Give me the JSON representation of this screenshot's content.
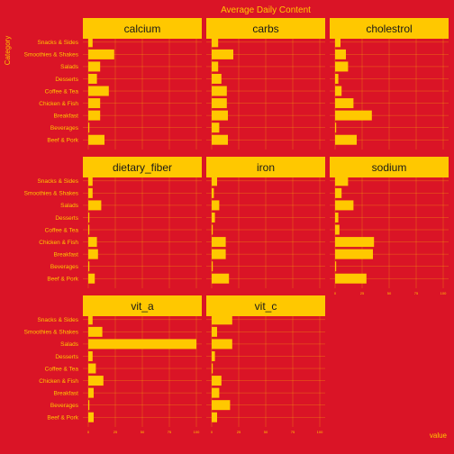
{
  "chart_data": {
    "type": "bar",
    "orientation": "horizontal",
    "title": "Average Daily Content",
    "xlabel": "value",
    "ylabel": "Category",
    "categories": [
      "Beef & Pork",
      "Beverages",
      "Breakfast",
      "Chicken & Fish",
      "Coffee & Tea",
      "Desserts",
      "Salads",
      "Smoothies & Shakes",
      "Snacks & Sides"
    ],
    "xlim": [
      0,
      100
    ],
    "xticks": [
      "0",
      "25",
      "50",
      "75",
      "100"
    ],
    "facets": [
      {
        "name": "calcium",
        "values": [
          15,
          1,
          11,
          11,
          19,
          8,
          11,
          24,
          4
        ]
      },
      {
        "name": "carbs",
        "values": [
          15,
          7,
          15,
          14,
          14,
          9,
          6,
          20,
          6
        ]
      },
      {
        "name": "cholestrol",
        "values": [
          20,
          1,
          34,
          17,
          6,
          3,
          12,
          10,
          5
        ]
      },
      {
        "name": "dietary_fiber",
        "values": [
          6,
          1,
          9,
          8,
          1,
          1,
          12,
          4,
          4
        ]
      },
      {
        "name": "iron",
        "values": [
          16,
          1,
          13,
          13,
          1,
          3,
          7,
          2,
          5
        ]
      },
      {
        "name": "sodium",
        "values": [
          29,
          1,
          35,
          36,
          4,
          3,
          17,
          6,
          12
        ]
      },
      {
        "name": "vit_a",
        "values": [
          5,
          1,
          5,
          14,
          7,
          4,
          100,
          13,
          4
        ]
      },
      {
        "name": "vit_c",
        "values": [
          5,
          17,
          7,
          9,
          1,
          3,
          19,
          5,
          19
        ]
      }
    ],
    "layout_cols": 3,
    "legend": "none",
    "grid": true,
    "colors": {
      "background": "#DA1426",
      "bar": "#FFC800",
      "strip": "#FFC800",
      "strip_text": "#1a1a1a",
      "text": "#FFC800",
      "grid": "#FFC800"
    }
  }
}
